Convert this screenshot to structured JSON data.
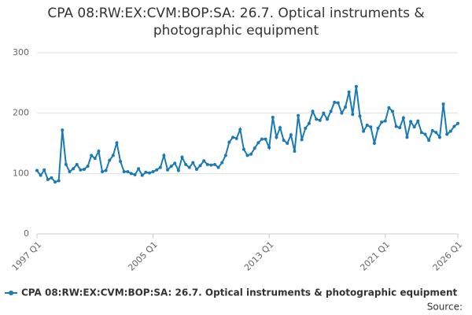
{
  "chart_data": {
    "type": "line",
    "title": "CPA 08:RW:EX:CVM:BOP:SA: 26.7. Optical instruments & photographic equipment",
    "source": "Source:",
    "categories": [
      "1997 Q1",
      null,
      null,
      null,
      null,
      null,
      null,
      null,
      null,
      null,
      null,
      null,
      null,
      null,
      null,
      null,
      null,
      null,
      null,
      null,
      null,
      null,
      null,
      null,
      null,
      null,
      null,
      null,
      null,
      null,
      null,
      null,
      "2005 Q1",
      null,
      null,
      null,
      null,
      null,
      null,
      null,
      null,
      null,
      null,
      null,
      null,
      null,
      null,
      null,
      null,
      null,
      null,
      null,
      null,
      null,
      null,
      null,
      null,
      null,
      null,
      null,
      null,
      null,
      null,
      null,
      "2013 Q1",
      null,
      null,
      null,
      null,
      null,
      null,
      null,
      null,
      null,
      null,
      null,
      null,
      null,
      null,
      null,
      null,
      null,
      null,
      null,
      null,
      null,
      null,
      null,
      null,
      null,
      null,
      null,
      null,
      null,
      null,
      null,
      "2021 Q1",
      null,
      null,
      null,
      null,
      null,
      null,
      null,
      null,
      null,
      null,
      null,
      null,
      null,
      null,
      null,
      null,
      null,
      null,
      null,
      "2026 Q1"
    ],
    "series": [
      {
        "name": "CPA 08:RW:EX:CVM:BOP:SA: 26.7. Optical instruments & photographic equipment",
        "color": "#1a7ab5",
        "values": [
          105,
          97,
          106,
          90,
          93,
          86,
          88,
          172,
          115,
          103,
          108,
          115,
          106,
          107,
          112,
          130,
          125,
          137,
          103,
          105,
          122,
          130,
          151,
          120,
          103,
          103,
          100,
          98,
          108,
          97,
          102,
          101,
          103,
          106,
          110,
          130,
          106,
          112,
          117,
          105,
          127,
          115,
          110,
          118,
          107,
          113,
          121,
          115,
          114,
          115,
          110,
          118,
          130,
          152,
          160,
          158,
          173,
          140,
          130,
          132,
          142,
          151,
          157,
          157,
          143,
          193,
          160,
          176,
          155,
          150,
          164,
          137,
          196,
          156,
          175,
          183,
          203,
          190,
          188,
          200,
          190,
          203,
          218,
          217,
          200,
          210,
          235,
          198,
          244,
          195,
          170,
          180,
          177,
          150,
          175,
          185,
          187,
          209,
          203,
          178,
          176,
          192,
          160,
          186,
          177,
          187,
          168,
          165,
          155,
          171,
          168,
          160,
          215,
          165,
          170,
          178,
          183
        ]
      }
    ],
    "ylim": [
      0,
      300
    ],
    "yticks": [
      0,
      100,
      200,
      300
    ],
    "grid": true
  }
}
